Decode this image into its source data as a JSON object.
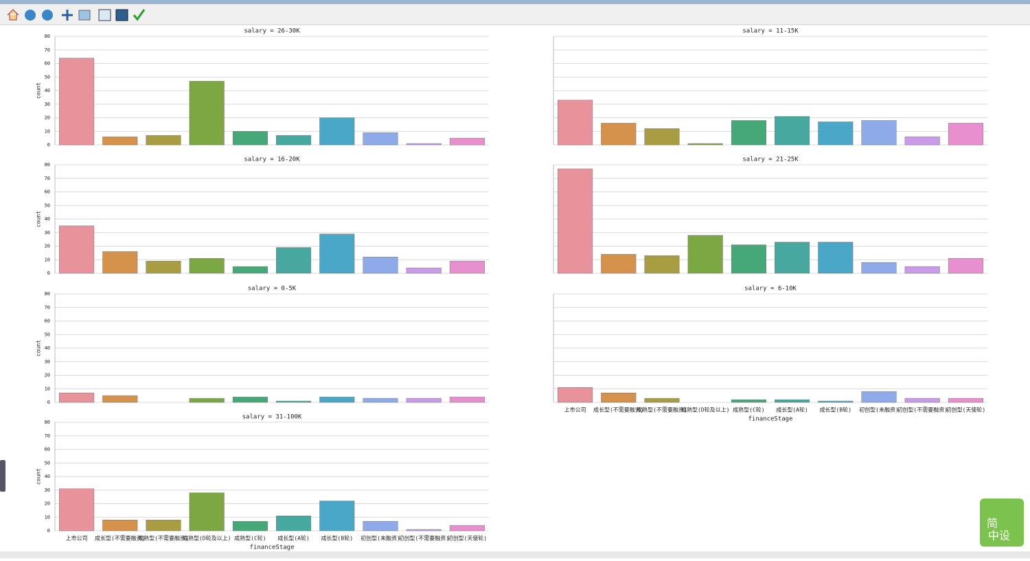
{
  "chart_data": [
    {
      "type": "bar",
      "title": "salary = 26-30K",
      "ylabel": "count",
      "values": [
        64,
        6,
        7,
        47,
        10,
        7,
        20,
        9,
        1,
        5
      ],
      "ylim": [
        0,
        80
      ],
      "yticks": [
        0,
        10,
        20,
        30,
        40,
        50,
        60,
        70,
        80
      ],
      "grid": true
    },
    {
      "type": "bar",
      "title": "salary = 11-15K",
      "values": [
        33,
        16,
        12,
        1,
        18,
        21,
        17,
        18,
        6,
        16
      ],
      "ylim": [
        0,
        80
      ],
      "yticks": [
        0,
        10,
        20,
        30,
        40,
        50,
        60,
        70,
        80
      ],
      "grid": true
    },
    {
      "type": "bar",
      "title": "salary = 16-20K",
      "ylabel": "count",
      "values": [
        35,
        16,
        9,
        11,
        5,
        19,
        29,
        12,
        4,
        9
      ],
      "ylim": [
        0,
        80
      ],
      "yticks": [
        0,
        10,
        20,
        30,
        40,
        50,
        60,
        70,
        80
      ],
      "grid": true
    },
    {
      "type": "bar",
      "title": "salary = 21-25K",
      "values": [
        77,
        14,
        13,
        28,
        21,
        23,
        23,
        8,
        5,
        11
      ],
      "ylim": [
        0,
        80
      ],
      "yticks": [
        0,
        10,
        20,
        30,
        40,
        50,
        60,
        70,
        80
      ],
      "grid": true
    },
    {
      "type": "bar",
      "title": "salary = 0-5K",
      "ylabel": "count",
      "values": [
        7,
        5,
        0,
        3,
        4,
        1,
        4,
        3,
        3,
        4
      ],
      "ylim": [
        0,
        80
      ],
      "yticks": [
        0,
        10,
        20,
        30,
        40,
        50,
        60,
        70,
        80
      ],
      "grid": true
    },
    {
      "type": "bar",
      "title": "salary = 6-10K",
      "xlabel": "financeStage",
      "categories": [
        "上市公司",
        "成长型(不需要融资)",
        "成熟型(不需要融资)",
        "成熟型(D轮及以上)",
        "成熟型(C轮)",
        "成长型(A轮)",
        "成长型(B轮)",
        "初创型(未融资)",
        "初创型(不需要融资)",
        "初创型(天使轮)"
      ],
      "values": [
        11,
        7,
        3,
        0,
        2,
        2,
        1,
        8,
        3,
        3
      ],
      "ylim": [
        0,
        80
      ],
      "yticks": [
        0,
        10,
        20,
        30,
        40,
        50,
        60,
        70,
        80
      ],
      "grid": true
    },
    {
      "type": "bar",
      "title": "salary = 31-100K",
      "ylabel": "count",
      "xlabel": "financeStage",
      "categories": [
        "上市公司",
        "成长型(不需要融资)",
        "成熟型(不需要融资)",
        "成熟型(D轮及以上)",
        "成熟型(C轮)",
        "成长型(A轮)",
        "成长型(B轮)",
        "初创型(未融资)",
        "初创型(不需要融资)",
        "初创型(天使轮)"
      ],
      "values": [
        31,
        8,
        8,
        28,
        7,
        11,
        22,
        7,
        1,
        4
      ],
      "ylim": [
        0,
        80
      ],
      "yticks": [
        0,
        10,
        20,
        30,
        40,
        50,
        60,
        70,
        80
      ],
      "grid": true
    }
  ],
  "colors": [
    "#e8929c",
    "#d5924c",
    "#a89d42",
    "#7ba843",
    "#46a879",
    "#47a8a0",
    "#4aa7c7",
    "#8eaae8",
    "#c99be8",
    "#e890cf"
  ],
  "watermark": [
    "简",
    "中设"
  ]
}
